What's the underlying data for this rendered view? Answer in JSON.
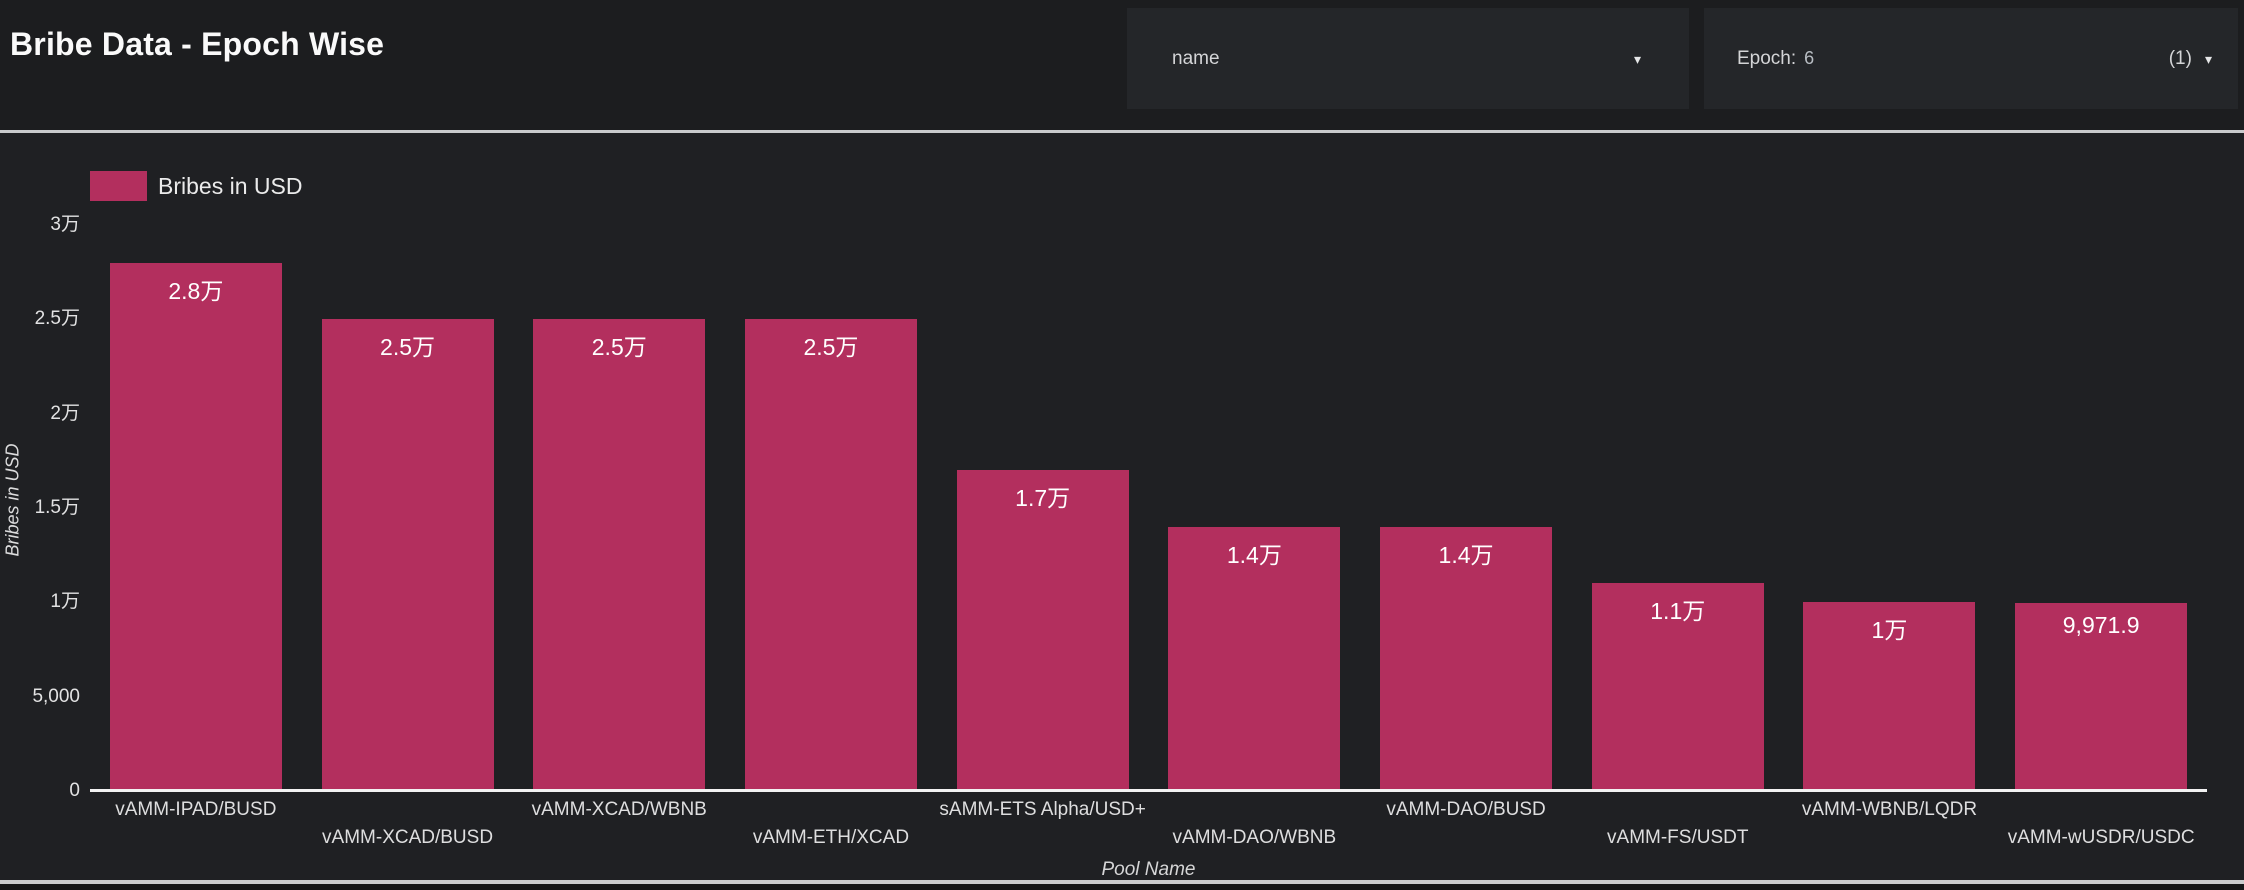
{
  "header": {
    "title": "Bribe Data - Epoch Wise",
    "sort_dropdown": {
      "value": "name",
      "caret_icon": "▾"
    },
    "epoch_dropdown": {
      "label": "Epoch:",
      "value": "6",
      "count": "(1)",
      "caret_icon": "▾"
    }
  },
  "legend": {
    "label": "Bribes in USD"
  },
  "chart_data": {
    "type": "bar",
    "title": "Bribe Data - Epoch Wise",
    "xlabel": "Pool Name",
    "ylabel": "Bribes in USD",
    "ylim": [
      0,
      30000
    ],
    "grid": false,
    "legend_position": "top-left",
    "bar_color": "#b32f5e",
    "label_color": "#ffffff",
    "categories": [
      "vAMM-IPAD/BUSD",
      "vAMM-XCAD/BUSD",
      "vAMM-XCAD/WBNB",
      "vAMM-ETH/XCAD",
      "sAMM-ETS Alpha/USD+",
      "vAMM-DAO/WBNB",
      "vAMM-DAO/BUSD",
      "vAMM-FS/USDT",
      "vAMM-WBNB/LQDR",
      "vAMM-wUSDR/USDC"
    ],
    "values": [
      28000,
      25000,
      25000,
      25000,
      17000,
      14000,
      14000,
      11000,
      10000,
      9971.9
    ],
    "bar_labels": [
      "2.8万",
      "2.5万",
      "2.5万",
      "2.5万",
      "1.7万",
      "1.4万",
      "1.4万",
      "1.1万",
      "1万",
      "9,971.9"
    ],
    "y_ticks": [
      {
        "label": "3万",
        "value": 30000
      },
      {
        "label": "2.5万",
        "value": 25000
      },
      {
        "label": "2万",
        "value": 20000
      },
      {
        "label": "1.5万",
        "value": 15000
      },
      {
        "label": "1万",
        "value": 10000
      },
      {
        "label": "5,000",
        "value": 5000
      },
      {
        "label": "0",
        "value": 0
      }
    ]
  }
}
